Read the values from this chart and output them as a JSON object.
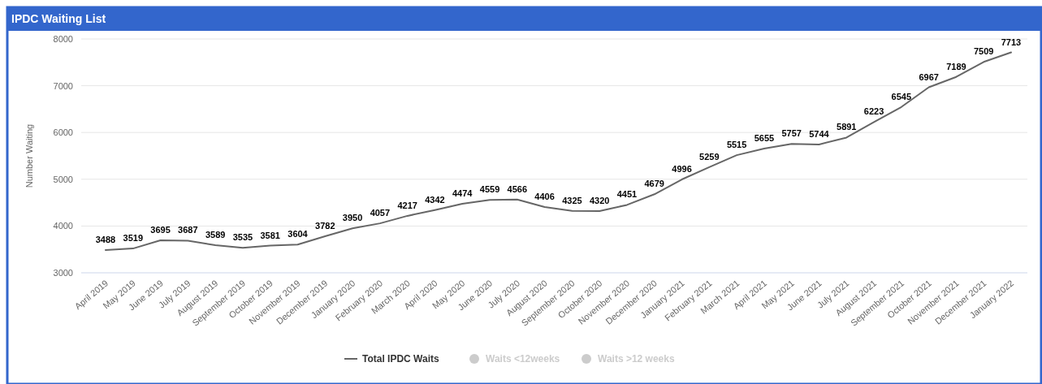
{
  "chart_data": {
    "type": "line",
    "title": "IPDC Waiting List",
    "ylabel": "Number Waiting",
    "categories": [
      "April 2019",
      "May 2019",
      "June 2019",
      "July 2019",
      "August 2019",
      "September 2019",
      "October 2019",
      "November 2019",
      "December 2019",
      "January 2020",
      "February 2020",
      "March 2020",
      "April 2020",
      "May 2020",
      "June 2020",
      "July 2020",
      "August 2020",
      "September 2020",
      "October 2020",
      "November 2020",
      "December 2020",
      "January 2021",
      "February 2021",
      "March 2021",
      "April 2021",
      "May 2021",
      "June 2021",
      "July 2021",
      "August 2021",
      "September 2021",
      "October 2021",
      "November 2021",
      "December 2021",
      "January 2022"
    ],
    "series": [
      {
        "name": "Total IPDC Waits",
        "color": "#666666",
        "values": [
          3488,
          3519,
          3695,
          3687,
          3589,
          3535,
          3581,
          3604,
          3782,
          3950,
          4057,
          4217,
          4342,
          4474,
          4559,
          4566,
          4406,
          4325,
          4320,
          4451,
          4679,
          4996,
          5259,
          5515,
          5655,
          5757,
          5744,
          5891,
          6223,
          6545,
          6967,
          7189,
          7509,
          7713
        ]
      },
      {
        "name": "Waits <12weeks",
        "color": "#cccccc",
        "values": [
          null,
          null,
          null,
          null,
          null,
          null,
          null,
          null,
          null,
          null,
          null,
          null,
          null,
          null,
          null,
          null,
          null,
          null,
          null,
          null,
          null,
          null,
          null,
          null,
          null,
          null,
          null,
          null,
          null,
          null,
          null,
          null,
          null,
          null
        ]
      },
      {
        "name": "Waits >12 weeks",
        "color": "#cccccc",
        "values": [
          null,
          null,
          null,
          null,
          null,
          null,
          null,
          null,
          null,
          null,
          null,
          null,
          null,
          null,
          null,
          null,
          null,
          null,
          null,
          null,
          null,
          null,
          null,
          null,
          null,
          null,
          null,
          null,
          null,
          null,
          null,
          null,
          null,
          null
        ]
      }
    ],
    "ylim": [
      3000,
      8000
    ],
    "yticks": [
      3000,
      4000,
      5000,
      6000,
      7000,
      8000
    ],
    "grid": "y",
    "legend": "bottom",
    "data_labels": true,
    "marker": "none",
    "line_style": "solid"
  }
}
